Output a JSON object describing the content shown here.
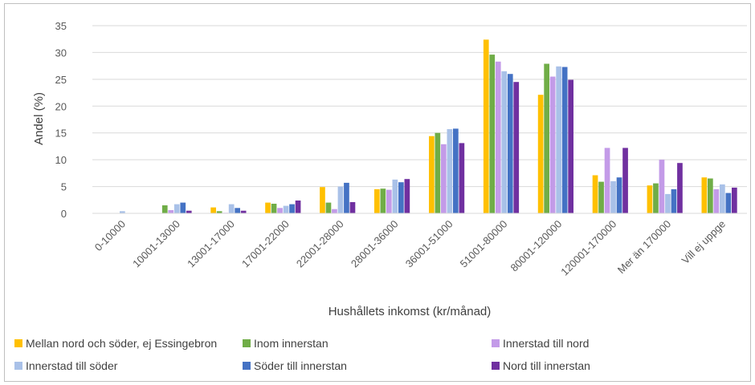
{
  "chart_data": {
    "type": "bar",
    "title": "",
    "xlabel": "Hushållets inkomst (kr/månad)",
    "ylabel": "Andel (%)",
    "ylim": [
      0,
      35
    ],
    "yticks": [
      0,
      5,
      10,
      15,
      20,
      25,
      30,
      35
    ],
    "grid": "horizontal",
    "legend_position": "bottom",
    "categories": [
      "0-10000",
      "10001-13000",
      "13001-17000",
      "17001-22000",
      "22001-28000",
      "28001-36000",
      "36001-51000",
      "51001-80000",
      "80001-120000",
      "120001-170000",
      "Mer än 170000",
      "Vill ej uppge"
    ],
    "series": [
      {
        "name": "Mellan nord och söder, ej Essingebron",
        "color": "#FFC000",
        "values": [
          0,
          0,
          1.1,
          2.0,
          4.9,
          4.5,
          14.4,
          32.4,
          22.1,
          7.1,
          5.2,
          6.7
        ]
      },
      {
        "name": "Inom innerstan",
        "color": "#70AD47",
        "values": [
          0,
          1.5,
          0.4,
          1.8,
          2.0,
          4.6,
          15.0,
          29.6,
          27.9,
          5.9,
          5.6,
          6.5
        ]
      },
      {
        "name": "Innerstad till nord",
        "color": "#C39BE8",
        "values": [
          0,
          0.6,
          0.1,
          1.0,
          0.8,
          4.4,
          12.9,
          28.3,
          25.5,
          12.2,
          10.0,
          4.5
        ]
      },
      {
        "name": "Innerstad till söder",
        "color": "#A9C1E8",
        "values": [
          0.4,
          1.7,
          1.7,
          1.4,
          5.0,
          6.3,
          15.7,
          26.5,
          27.4,
          6.0,
          3.6,
          5.4
        ]
      },
      {
        "name": "Söder till innerstan",
        "color": "#4472C4",
        "values": [
          0,
          2.0,
          1.0,
          1.7,
          5.7,
          5.8,
          15.8,
          26.0,
          27.3,
          6.7,
          4.5,
          3.8
        ]
      },
      {
        "name": "Nord till innerstan",
        "color": "#7030A0",
        "values": [
          0,
          0.5,
          0.5,
          2.4,
          2.1,
          6.4,
          13.1,
          24.5,
          24.9,
          12.2,
          9.4,
          4.8
        ]
      }
    ]
  }
}
